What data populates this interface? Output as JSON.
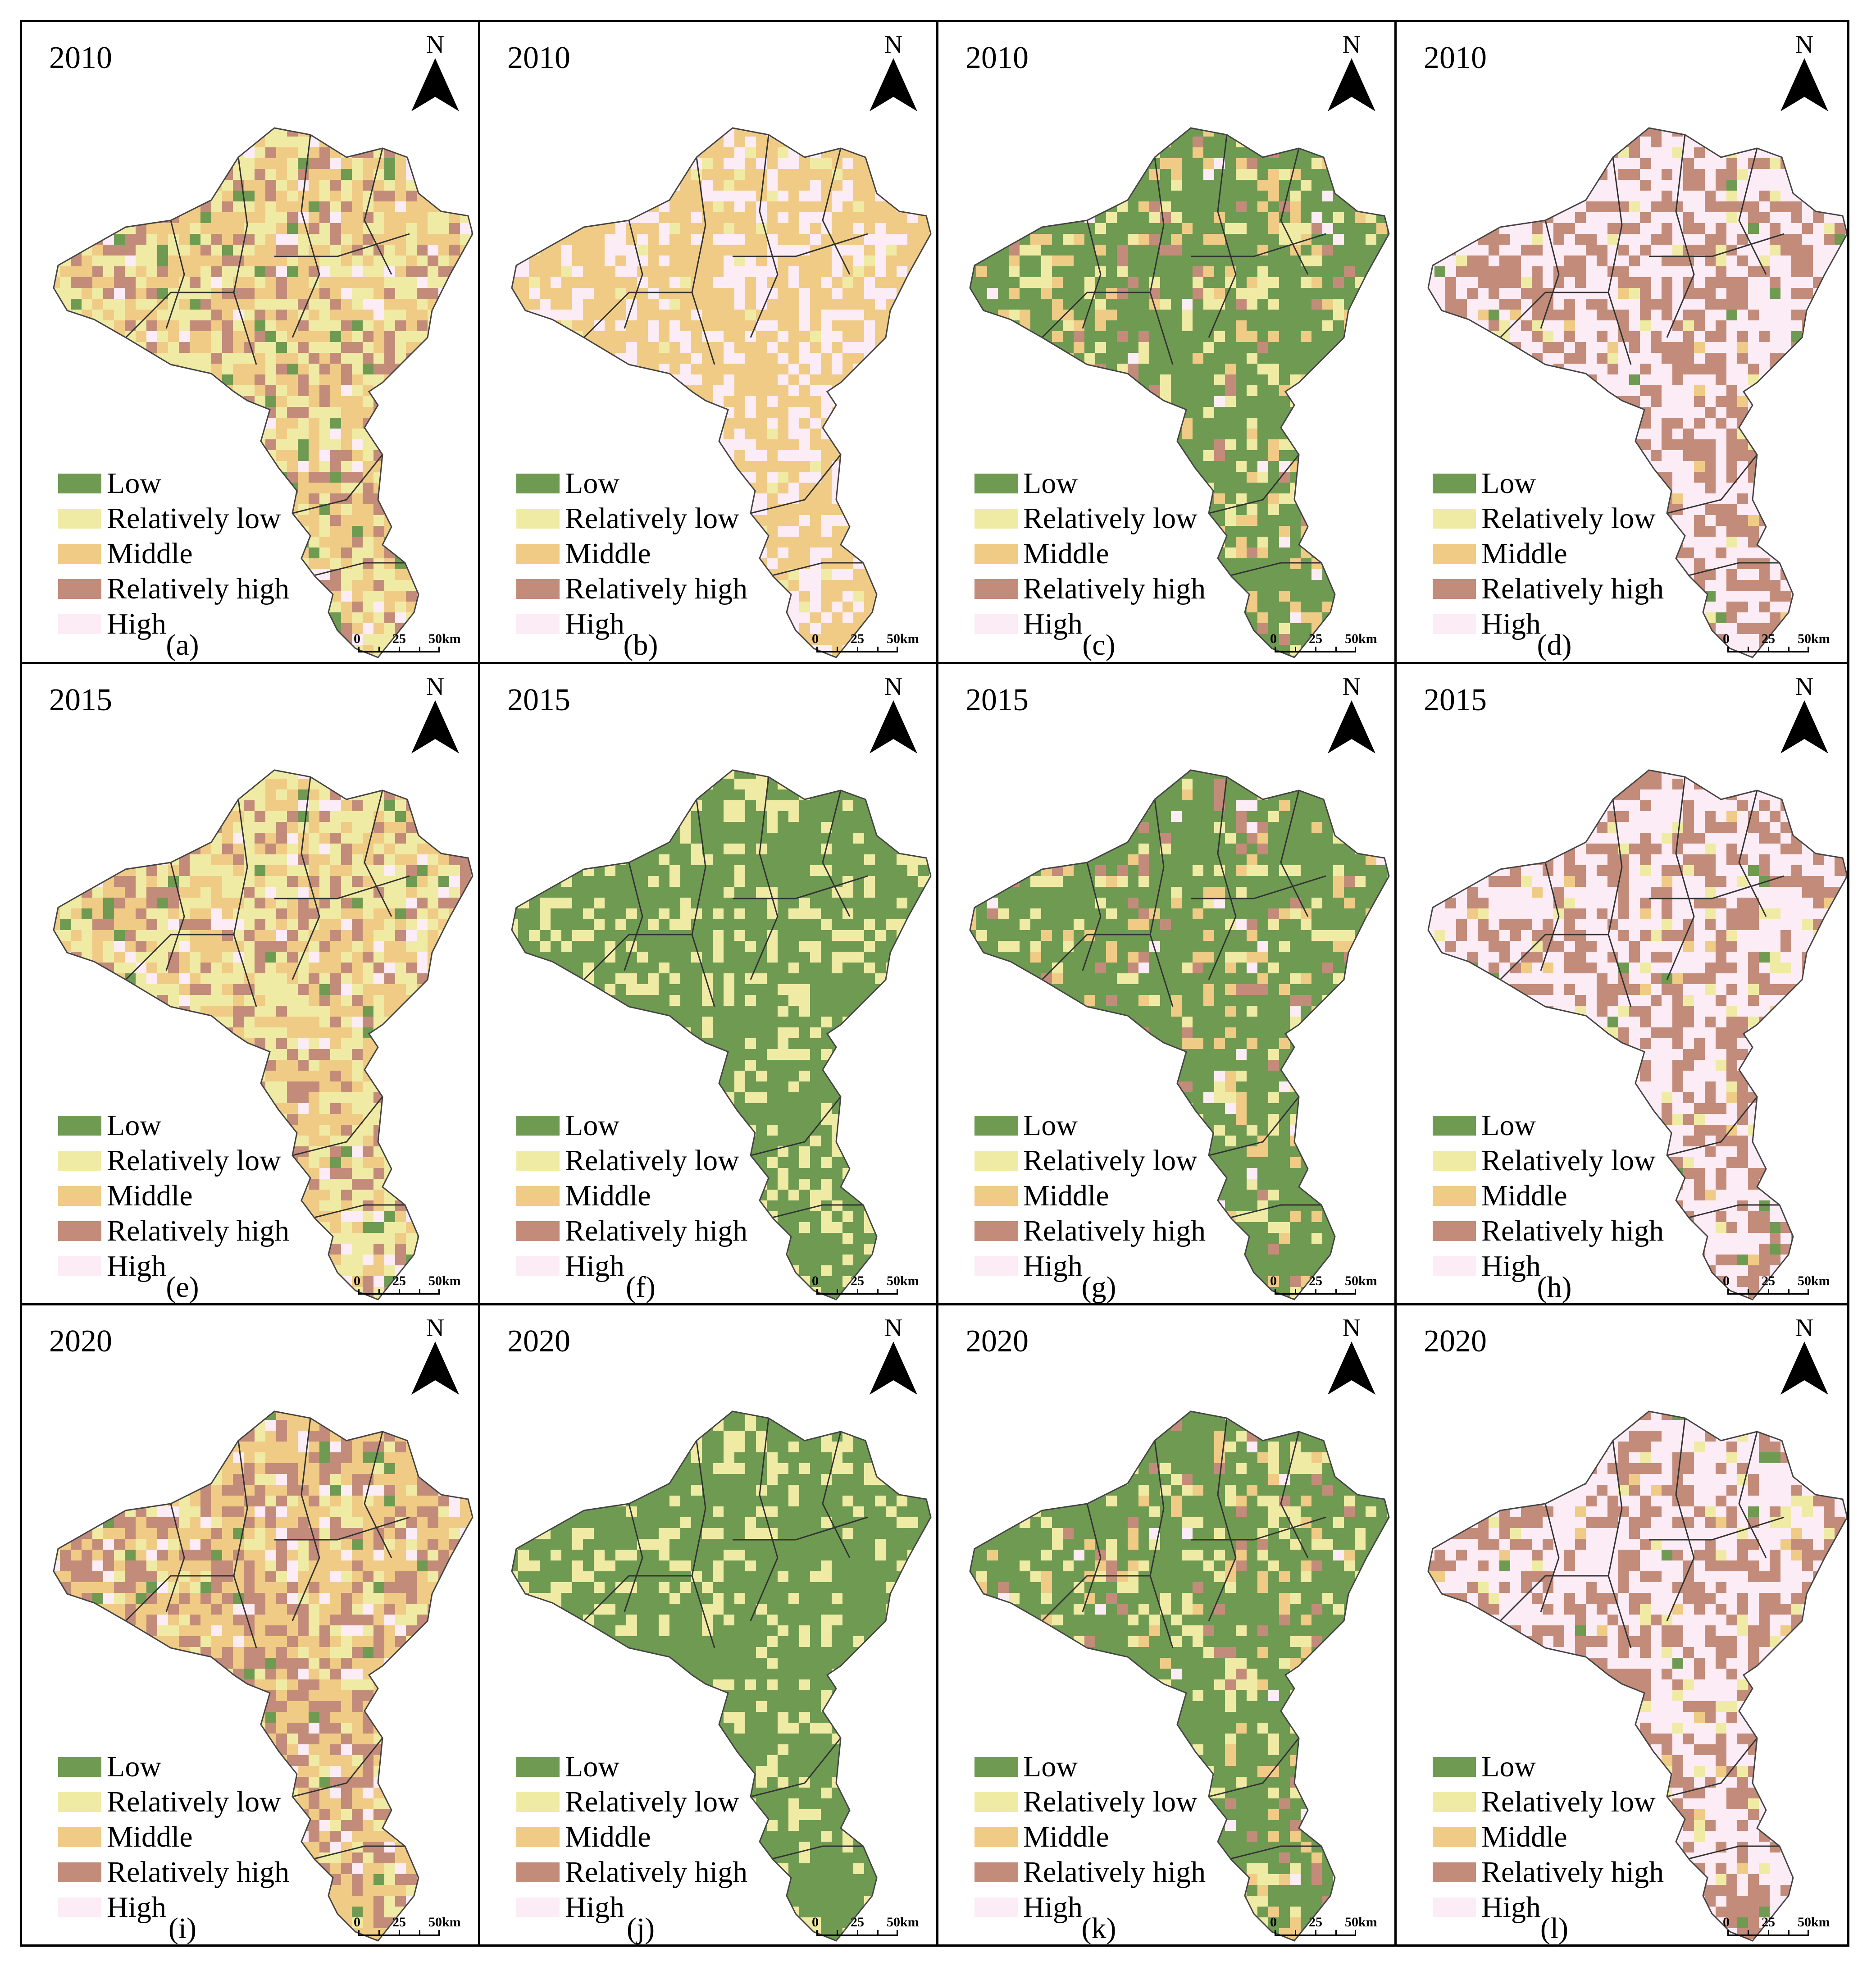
{
  "legend_colors": {
    "low": "#6f9a52",
    "relatively_low": "#f0eba4",
    "middle": "#f0cb86",
    "relatively_high": "#c38c7a",
    "high": "#fcecf6"
  },
  "legend_labels": [
    "Low",
    "Relatively low",
    "Middle",
    "Relatively high",
    "High"
  ],
  "north_label": "N",
  "scale": {
    "zero": "0",
    "mid": "25",
    "end": "50km"
  },
  "panels": [
    {
      "id": "a",
      "year": "2010",
      "label": "(a)",
      "mix": [
        0.04,
        0.34,
        0.36,
        0.2,
        0.06
      ]
    },
    {
      "id": "b",
      "year": "2010",
      "label": "(b)",
      "mix": [
        0.0,
        0.05,
        0.62,
        0.0,
        0.33
      ]
    },
    {
      "id": "c",
      "year": "2010",
      "label": "(c)",
      "mix": [
        0.72,
        0.12,
        0.1,
        0.04,
        0.02
      ]
    },
    {
      "id": "d",
      "year": "2010",
      "label": "(d)",
      "mix": [
        0.01,
        0.03,
        0.02,
        0.38,
        0.56
      ]
    },
    {
      "id": "e",
      "year": "2015",
      "label": "(e)",
      "mix": [
        0.05,
        0.36,
        0.32,
        0.2,
        0.07
      ]
    },
    {
      "id": "f",
      "year": "2015",
      "label": "(f)",
      "mix": [
        0.72,
        0.28,
        0.0,
        0.0,
        0.0
      ]
    },
    {
      "id": "g",
      "year": "2015",
      "label": "(g)",
      "mix": [
        0.74,
        0.11,
        0.09,
        0.04,
        0.02
      ]
    },
    {
      "id": "h",
      "year": "2015",
      "label": "(h)",
      "mix": [
        0.01,
        0.05,
        0.02,
        0.36,
        0.56
      ]
    },
    {
      "id": "i",
      "year": "2020",
      "label": "(i)",
      "mix": [
        0.04,
        0.14,
        0.4,
        0.34,
        0.08
      ]
    },
    {
      "id": "j",
      "year": "2020",
      "label": "(j)",
      "mix": [
        0.78,
        0.22,
        0.0,
        0.0,
        0.0
      ]
    },
    {
      "id": "k",
      "year": "2020",
      "label": "(k)",
      "mix": [
        0.7,
        0.13,
        0.1,
        0.05,
        0.02
      ]
    },
    {
      "id": "l",
      "year": "2020",
      "label": "(l)",
      "mix": [
        0.01,
        0.06,
        0.02,
        0.38,
        0.53
      ]
    }
  ]
}
